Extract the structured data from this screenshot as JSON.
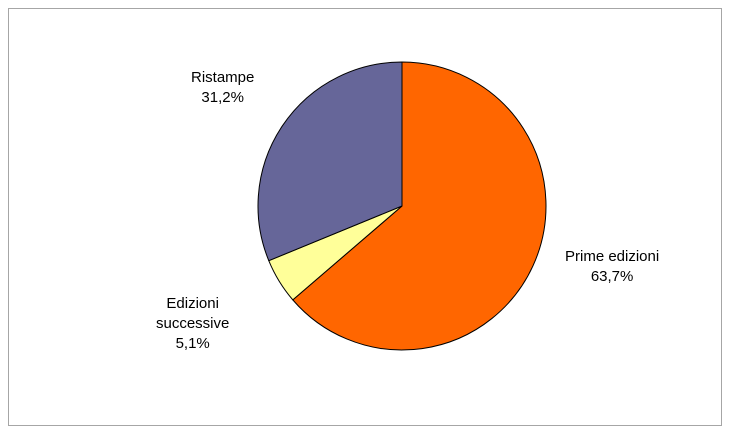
{
  "chart_data": {
    "type": "pie",
    "slices": [
      {
        "label": "Prime edizioni",
        "value_label": "63,7%",
        "value": 63.7,
        "color": "#ff6600"
      },
      {
        "label_lines": [
          "Edizioni",
          "successive"
        ],
        "label": "Edizioni successive",
        "value_label": "5,1%",
        "value": 5.1,
        "color": "#ffff99"
      },
      {
        "label": "Ristampe",
        "value_label": "31,2%",
        "value": 31.2,
        "color": "#666699"
      }
    ],
    "start_angle_deg": 0,
    "direction": "clockwise",
    "slice_border_color": "#000000"
  }
}
